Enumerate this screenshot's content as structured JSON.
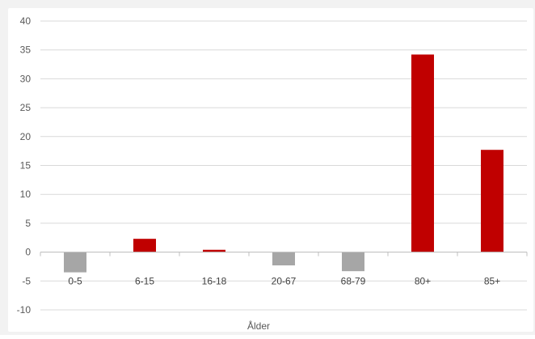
{
  "chart_data": {
    "type": "bar",
    "categories": [
      "0-5",
      "6-15",
      "16-18",
      "20-67",
      "68-79",
      "80+",
      "85+"
    ],
    "values": [
      -3.5,
      2.3,
      0.4,
      -2.3,
      -3.3,
      34.2,
      17.7
    ],
    "title": "",
    "xlabel": "Ålder",
    "ylabel": "",
    "ylim": [
      -10,
      40
    ],
    "yticks": [
      -10,
      -5,
      0,
      5,
      10,
      15,
      20,
      25,
      30,
      35,
      40
    ],
    "grid": true,
    "legend": "none",
    "colors": {
      "positive": "#c00000",
      "negative": "#a6a6a6",
      "grid": "#d9d9d9",
      "axis": "#bfbfbf",
      "plot_background": "#ffffff",
      "outer_background": "#f2f2f2"
    }
  }
}
